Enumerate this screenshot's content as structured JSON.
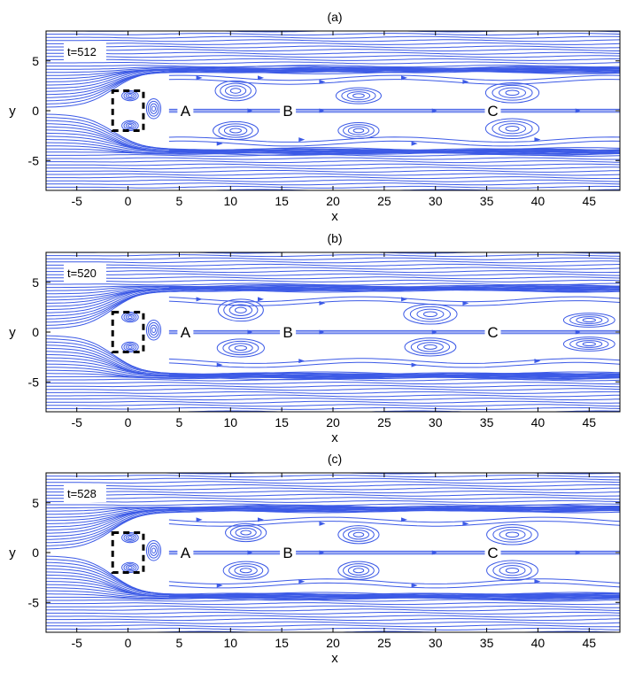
{
  "figure": {
    "x_axis_label": "x",
    "y_axis_label": "y",
    "x_ticks": [
      -5,
      0,
      5,
      10,
      15,
      20,
      25,
      30,
      35,
      40,
      45
    ],
    "y_ticks": [
      -5,
      0,
      5
    ],
    "xlim": [
      -8,
      48
    ],
    "ylim": [
      -8,
      8
    ],
    "line_color": "#3c5ae6",
    "obstacle_color": "#000000"
  },
  "chart_data": [
    {
      "type": "streamline",
      "title": "(a)",
      "time_label": "t=512",
      "xlabel": "x",
      "ylabel": "y",
      "xlim": [
        -8,
        48
      ],
      "ylim": [
        -8,
        8
      ],
      "grid": false,
      "obstacle": {
        "x_range": [
          -1.5,
          1.5
        ],
        "y_range": [
          -2,
          2
        ]
      },
      "region_labels": [
        {
          "text": "A",
          "x": 5.6,
          "y": 0
        },
        {
          "text": "B",
          "x": 15.6,
          "y": 0
        },
        {
          "text": "C",
          "x": 35.6,
          "y": 0
        }
      ],
      "wake_half_width": 4.0,
      "vortices": [
        {
          "x": 0.2,
          "y": 1.5,
          "rx": 0.8,
          "ry": 0.5
        },
        {
          "x": 0.2,
          "y": -1.5,
          "rx": 0.8,
          "ry": 0.5
        },
        {
          "x": 2.5,
          "y": 0.2,
          "rx": 0.7,
          "ry": 1.0
        },
        {
          "x": 10.5,
          "y": 2.0,
          "rx": 2.0,
          "ry": 1.0
        },
        {
          "x": 10.5,
          "y": -2.0,
          "rx": 2.2,
          "ry": 0.9
        },
        {
          "x": 22.5,
          "y": 1.5,
          "rx": 2.2,
          "ry": 0.8
        },
        {
          "x": 22.5,
          "y": -2.0,
          "rx": 2.0,
          "ry": 0.8
        },
        {
          "x": 37.5,
          "y": 1.8,
          "rx": 2.6,
          "ry": 1.0
        },
        {
          "x": 37.5,
          "y": -1.8,
          "rx": 2.6,
          "ry": 1.0
        }
      ]
    },
    {
      "type": "streamline",
      "title": "(b)",
      "time_label": "t=520",
      "xlabel": "x",
      "ylabel": "y",
      "xlim": [
        -8,
        48
      ],
      "ylim": [
        -8,
        8
      ],
      "grid": false,
      "obstacle": {
        "x_range": [
          -1.5,
          1.5
        ],
        "y_range": [
          -2,
          2
        ]
      },
      "region_labels": [
        {
          "text": "A",
          "x": 5.6,
          "y": 0
        },
        {
          "text": "B",
          "x": 15.6,
          "y": 0
        },
        {
          "text": "C",
          "x": 35.6,
          "y": 0
        }
      ],
      "wake_half_width": 4.3,
      "vortices": [
        {
          "x": 0.2,
          "y": 1.5,
          "rx": 0.8,
          "ry": 0.5
        },
        {
          "x": 0.2,
          "y": -1.5,
          "rx": 0.8,
          "ry": 0.5
        },
        {
          "x": 2.5,
          "y": 0.2,
          "rx": 0.7,
          "ry": 1.0
        },
        {
          "x": 11.0,
          "y": 2.2,
          "rx": 2.2,
          "ry": 1.1
        },
        {
          "x": 11.0,
          "y": -1.6,
          "rx": 2.3,
          "ry": 0.9
        },
        {
          "x": 29.5,
          "y": 1.8,
          "rx": 2.6,
          "ry": 1.0
        },
        {
          "x": 29.5,
          "y": -1.5,
          "rx": 2.5,
          "ry": 0.9
        },
        {
          "x": 45.0,
          "y": 1.2,
          "rx": 2.5,
          "ry": 0.7
        },
        {
          "x": 45.0,
          "y": -1.2,
          "rx": 2.5,
          "ry": 0.7
        }
      ]
    },
    {
      "type": "streamline",
      "title": "(c)",
      "time_label": "t=528",
      "xlabel": "x",
      "ylabel": "y",
      "xlim": [
        -8,
        48
      ],
      "ylim": [
        -8,
        8
      ],
      "grid": false,
      "obstacle": {
        "x_range": [
          -1.5,
          1.5
        ],
        "y_range": [
          -2,
          2
        ]
      },
      "region_labels": [
        {
          "text": "A",
          "x": 5.6,
          "y": 0
        },
        {
          "text": "B",
          "x": 15.6,
          "y": 0
        },
        {
          "text": "C",
          "x": 35.6,
          "y": 0
        }
      ],
      "wake_half_width": 4.3,
      "vortices": [
        {
          "x": 0.2,
          "y": 1.5,
          "rx": 0.8,
          "ry": 0.5
        },
        {
          "x": 0.2,
          "y": -1.5,
          "rx": 0.8,
          "ry": 0.5
        },
        {
          "x": 2.5,
          "y": 0.2,
          "rx": 0.7,
          "ry": 1.0
        },
        {
          "x": 11.5,
          "y": 2.0,
          "rx": 2.0,
          "ry": 0.9
        },
        {
          "x": 11.5,
          "y": -1.8,
          "rx": 2.2,
          "ry": 0.9
        },
        {
          "x": 22.5,
          "y": 1.8,
          "rx": 2.0,
          "ry": 0.9
        },
        {
          "x": 22.5,
          "y": -1.8,
          "rx": 2.0,
          "ry": 0.9
        },
        {
          "x": 37.5,
          "y": 1.8,
          "rx": 2.5,
          "ry": 1.0
        },
        {
          "x": 37.5,
          "y": -1.8,
          "rx": 2.5,
          "ry": 1.0
        }
      ]
    }
  ]
}
